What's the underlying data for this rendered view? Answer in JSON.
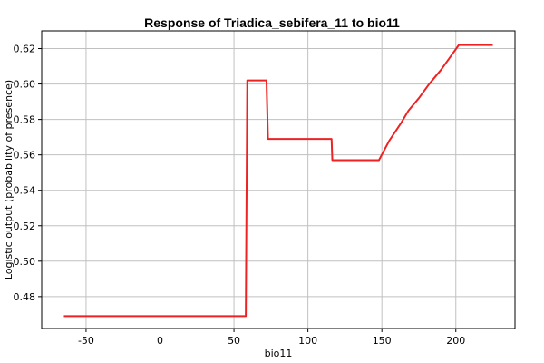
{
  "chart_data": {
    "type": "line",
    "title": "Response of Triadica_sebifera_11 to bio11",
    "xlabel": "bio11",
    "ylabel": "Logistic output (probability of presence)",
    "xlim": [
      -80,
      240
    ],
    "ylim": [
      0.462,
      0.63
    ],
    "x_ticks": [
      -50,
      0,
      50,
      100,
      150,
      200
    ],
    "y_ticks": [
      0.48,
      0.5,
      0.52,
      0.54,
      0.56,
      0.58,
      0.6,
      0.62
    ],
    "grid": true,
    "series": [
      {
        "color": "#ee2222",
        "x": [
          -65,
          58,
          59,
          72,
          73,
          116,
          116.5,
          148,
          155,
          163,
          168,
          175,
          182,
          190,
          196,
          202,
          225
        ],
        "y": [
          0.469,
          0.469,
          0.602,
          0.602,
          0.569,
          0.569,
          0.557,
          0.557,
          0.568,
          0.578,
          0.585,
          0.592,
          0.6,
          0.608,
          0.615,
          0.622,
          0.622
        ]
      }
    ]
  }
}
